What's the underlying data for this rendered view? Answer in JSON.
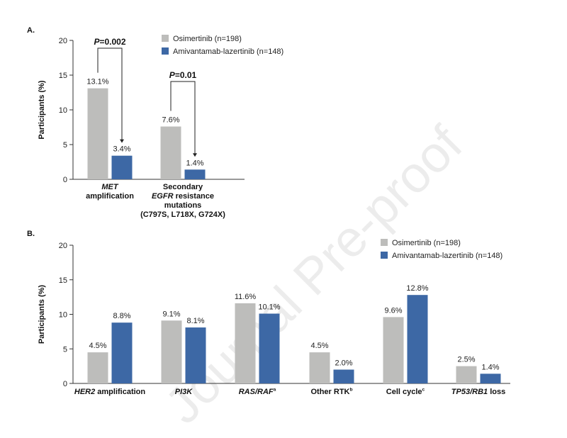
{
  "watermark": "Journal Pre-proof",
  "colors": {
    "osimertinib": "#bdbdbb",
    "amivantamab": "#3d68a5",
    "axis": "#333333"
  },
  "chart_data": [
    {
      "panel": "A.",
      "type": "bar",
      "ylabel": "Participants (%)",
      "ylim": [
        0,
        20
      ],
      "yticks": [
        "0",
        "5",
        "10",
        "15",
        "20"
      ],
      "categories": [
        "MET amplification",
        "Secondary EGFR resistance mutations (C797S, L718X, G724X)"
      ],
      "category_lines": [
        [
          [
            {
              "t": "MET",
              "i": true
            }
          ],
          [
            {
              "t": "amplification",
              "i": false
            }
          ]
        ],
        [
          [
            {
              "t": "Secondary",
              "i": false
            }
          ],
          [
            {
              "t": "EGFR",
              "i": true
            },
            {
              "t": " resistance",
              "i": false
            }
          ],
          [
            {
              "t": "mutations",
              "i": false
            }
          ],
          [
            {
              "t": "(C797S, L718X, G724X)",
              "i": false
            }
          ]
        ]
      ],
      "series": [
        {
          "name": "Osimertinib (n=198)",
          "values": [
            13.1,
            7.6
          ],
          "labels": [
            "13.1%",
            "7.6%"
          ]
        },
        {
          "name": "Amivantamab-lazertinib (n=148)",
          "values": [
            3.4,
            1.4
          ],
          "labels": [
            "3.4%",
            "1.4%"
          ]
        }
      ],
      "annotations": [
        {
          "category": 0,
          "p_italic": "P",
          "p_value": "=0.002"
        },
        {
          "category": 1,
          "p_italic": "P",
          "p_value": "=0.01"
        }
      ],
      "legend": "top-right"
    },
    {
      "panel": "B.",
      "type": "bar",
      "ylabel": "Participants (%)",
      "ylim": [
        0,
        20
      ],
      "yticks": [
        "0",
        "5",
        "10",
        "15",
        "20"
      ],
      "categories": [
        "HER2 amplification",
        "PI3K",
        "RAS/RAFa",
        "Other RTKb",
        "Cell cyclec",
        "TP53/RB1 loss"
      ],
      "category_lines": [
        [
          [
            {
              "t": "HER2",
              "i": true
            },
            {
              "t": " amplification",
              "i": false
            }
          ]
        ],
        [
          [
            {
              "t": "PI3K",
              "i": true
            }
          ]
        ],
        [
          [
            {
              "t": "RAS/RAF",
              "i": true
            },
            {
              "t": "a",
              "i": false,
              "sup": true
            }
          ]
        ],
        [
          [
            {
              "t": "Other RTK",
              "i": false
            },
            {
              "t": "b",
              "i": false,
              "sup": true
            }
          ]
        ],
        [
          [
            {
              "t": "Cell cycle",
              "i": false
            },
            {
              "t": "c",
              "i": false,
              "sup": true
            }
          ]
        ],
        [
          [
            {
              "t": "TP53/RB1",
              "i": true
            },
            {
              "t": " loss",
              "i": false
            }
          ]
        ]
      ],
      "series": [
        {
          "name": "Osimertinib (n=198)",
          "values": [
            4.5,
            9.1,
            11.6,
            4.5,
            9.6,
            2.5
          ],
          "labels": [
            "4.5%",
            "9.1%",
            "11.6%",
            "4.5%",
            "9.6%",
            "2.5%"
          ]
        },
        {
          "name": "Amivantamab-lazertinib (n=148)",
          "values": [
            8.8,
            8.1,
            10.1,
            2.0,
            12.8,
            1.4
          ],
          "labels": [
            "8.8%",
            "8.1%",
            "10.1%",
            "2.0%",
            "12.8%",
            "1.4%"
          ]
        }
      ],
      "legend": "top-right"
    }
  ]
}
